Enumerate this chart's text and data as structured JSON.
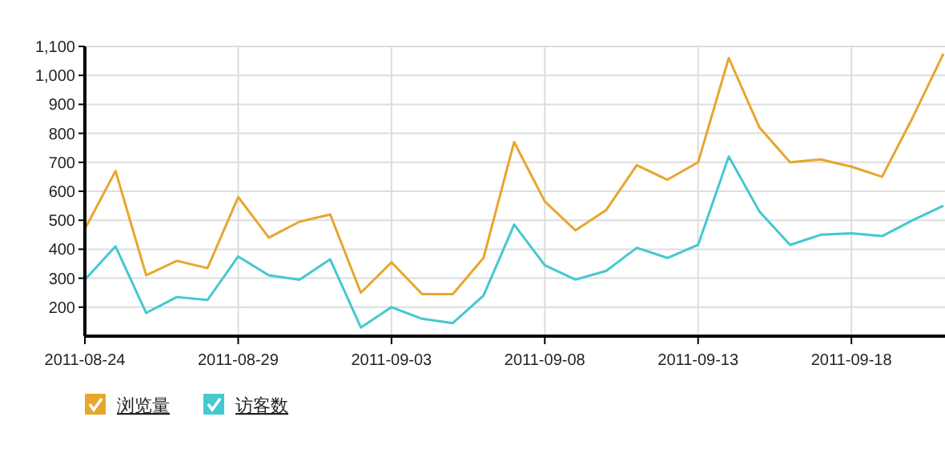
{
  "chart_data": {
    "type": "line",
    "x": [
      "2011-08-24",
      "2011-08-25",
      "2011-08-26",
      "2011-08-27",
      "2011-08-28",
      "2011-08-29",
      "2011-08-30",
      "2011-08-31",
      "2011-09-01",
      "2011-09-02",
      "2011-09-03",
      "2011-09-04",
      "2011-09-05",
      "2011-09-06",
      "2011-09-07",
      "2011-09-08",
      "2011-09-09",
      "2011-09-10",
      "2011-09-11",
      "2011-09-12",
      "2011-09-13",
      "2011-09-14",
      "2011-09-15",
      "2011-09-16",
      "2011-09-17",
      "2011-09-18",
      "2011-09-19",
      "2011-09-20",
      "2011-09-21"
    ],
    "series": [
      {
        "name": "浏览量",
        "color": "#e8a62c",
        "values": [
          470,
          670,
          310,
          360,
          335,
          580,
          440,
          495,
          520,
          250,
          355,
          245,
          245,
          370,
          770,
          565,
          465,
          535,
          690,
          640,
          700,
          1060,
          820,
          700,
          710,
          685,
          650,
          855,
          1075
        ]
      },
      {
        "name": "访客数",
        "color": "#45c8d0",
        "values": [
          295,
          410,
          180,
          235,
          225,
          375,
          310,
          295,
          365,
          130,
          200,
          160,
          145,
          240,
          485,
          345,
          295,
          325,
          405,
          370,
          415,
          720,
          530,
          415,
          450,
          455,
          445,
          500,
          550
        ]
      }
    ],
    "xlim": [
      "2011-08-24",
      "2011-09-21"
    ],
    "xticks": [
      "2011-08-24",
      "2011-08-29",
      "2011-09-03",
      "2011-09-08",
      "2011-09-13",
      "2011-09-18"
    ],
    "ylim": [
      100,
      1100
    ],
    "yticks": [
      200,
      300,
      400,
      500,
      600,
      700,
      800,
      900,
      {
        "value": 1000,
        "label": "1,000"
      },
      {
        "value": 1100,
        "label": "1,100"
      }
    ],
    "grid": true,
    "legend": "bottom left",
    "marker": "none",
    "line_style": "solid"
  }
}
